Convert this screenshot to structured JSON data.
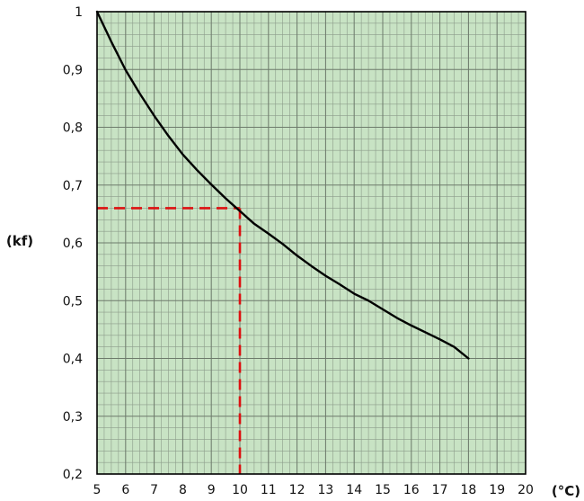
{
  "chart_data": {
    "type": "line",
    "title": "",
    "xlabel": "(°C)",
    "ylabel": "(kf)",
    "xlim": [
      5,
      20
    ],
    "ylim": [
      0.2,
      1.0
    ],
    "x_ticks": [
      5,
      6,
      7,
      8,
      9,
      10,
      11,
      12,
      13,
      14,
      15,
      16,
      17,
      18,
      19,
      20
    ],
    "x_tick_labels": [
      "5",
      "6",
      "7",
      "8",
      "9",
      "10",
      "11",
      "12",
      "13",
      "14",
      "15",
      "16",
      "17",
      "18",
      "19",
      "20"
    ],
    "y_ticks": [
      0.2,
      0.3,
      0.4,
      0.5,
      0.6,
      0.7,
      0.8,
      0.9,
      1.0
    ],
    "y_tick_labels": [
      "0,2",
      "0,3",
      "0,4",
      "0,5",
      "0,6",
      "0,7",
      "0,8",
      "0,9",
      "1"
    ],
    "grid": true,
    "minor_grid_x_step": 0.25,
    "minor_grid_y_step": 0.02,
    "background_color": "#c8e3c4",
    "grid_color": "#8c9c8a",
    "line_color": "#000000",
    "series": [
      {
        "x": [
          5,
          5.5,
          6,
          6.5,
          7,
          7.5,
          8,
          8.5,
          9,
          9.5,
          10,
          10.5,
          11,
          11.5,
          12,
          12.5,
          13,
          13.5,
          14,
          14.5,
          15,
          15.5,
          16,
          16.5,
          17,
          17.5,
          18
        ],
        "values": [
          1.0,
          0.948,
          0.899,
          0.858,
          0.82,
          0.785,
          0.753,
          0.726,
          0.701,
          0.677,
          0.655,
          0.633,
          0.616,
          0.598,
          0.578,
          0.56,
          0.543,
          0.528,
          0.512,
          0.5,
          0.485,
          0.47,
          0.457,
          0.445,
          0.433,
          0.42,
          0.4
        ]
      }
    ],
    "reference": {
      "x": 10,
      "y": 0.66,
      "color": "#dd1111",
      "style": "dashed"
    }
  }
}
